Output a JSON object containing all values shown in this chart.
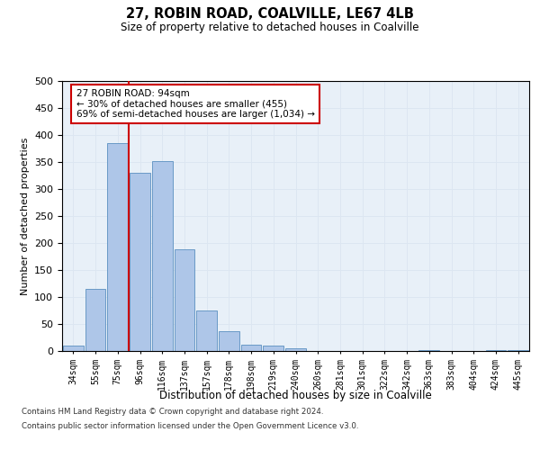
{
  "title": "27, ROBIN ROAD, COALVILLE, LE67 4LB",
  "subtitle": "Size of property relative to detached houses in Coalville",
  "xlabel": "Distribution of detached houses by size in Coalville",
  "ylabel": "Number of detached properties",
  "bins": [
    "34sqm",
    "55sqm",
    "75sqm",
    "96sqm",
    "116sqm",
    "137sqm",
    "157sqm",
    "178sqm",
    "198sqm",
    "219sqm",
    "240sqm",
    "260sqm",
    "281sqm",
    "301sqm",
    "322sqm",
    "342sqm",
    "363sqm",
    "383sqm",
    "404sqm",
    "424sqm",
    "445sqm"
  ],
  "bar_values": [
    10,
    115,
    385,
    330,
    352,
    188,
    75,
    37,
    12,
    10,
    5,
    0,
    0,
    0,
    0,
    0,
    2,
    0,
    0,
    2,
    2
  ],
  "bar_color": "#aec6e8",
  "bar_edge_color": "#5a8fc0",
  "grid_color": "#dce6f1",
  "background_color": "#e8f0f8",
  "vline_color": "#cc0000",
  "annotation_text": "27 ROBIN ROAD: 94sqm\n← 30% of detached houses are smaller (455)\n69% of semi-detached houses are larger (1,034) →",
  "annotation_box_color": "#ffffff",
  "annotation_border_color": "#cc0000",
  "footnote1": "Contains HM Land Registry data © Crown copyright and database right 2024.",
  "footnote2": "Contains public sector information licensed under the Open Government Licence v3.0.",
  "ylim": [
    0,
    500
  ],
  "yticks": [
    0,
    50,
    100,
    150,
    200,
    250,
    300,
    350,
    400,
    450,
    500
  ],
  "vline_pos": 2.5
}
